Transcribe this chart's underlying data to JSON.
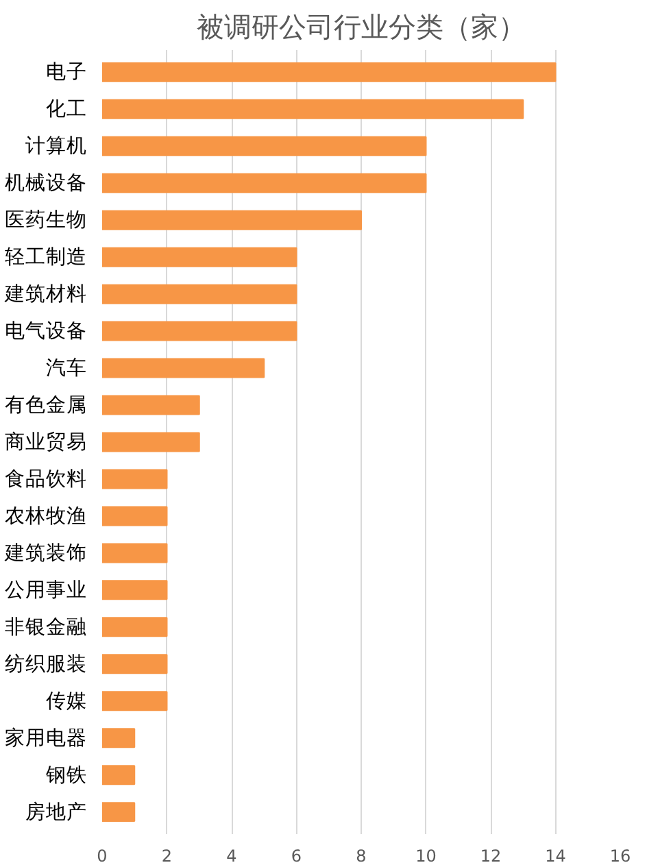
{
  "chart_data": {
    "type": "bar",
    "orientation": "horizontal",
    "title": "被调研公司行业分类（家）",
    "categories": [
      "电子",
      "化工",
      "计算机",
      "机械设备",
      "医药生物",
      "轻工制造",
      "建筑材料",
      "电气设备",
      "汽车",
      "有色金属",
      "商业贸易",
      "食品饮料",
      "农林牧渔",
      "建筑装饰",
      "公用事业",
      "非银金融",
      "纺织服装",
      "传媒",
      "家用电器",
      "钢铁",
      "房地产"
    ],
    "values": [
      14,
      13,
      10,
      10,
      8,
      6,
      6,
      6,
      5,
      3,
      3,
      2,
      2,
      2,
      2,
      2,
      2,
      2,
      1,
      1,
      1
    ],
    "color": "#f79646",
    "xlim": [
      0,
      16
    ],
    "xticks": [
      0,
      2,
      4,
      6,
      8,
      10,
      12,
      14,
      16
    ],
    "grid": "x"
  }
}
